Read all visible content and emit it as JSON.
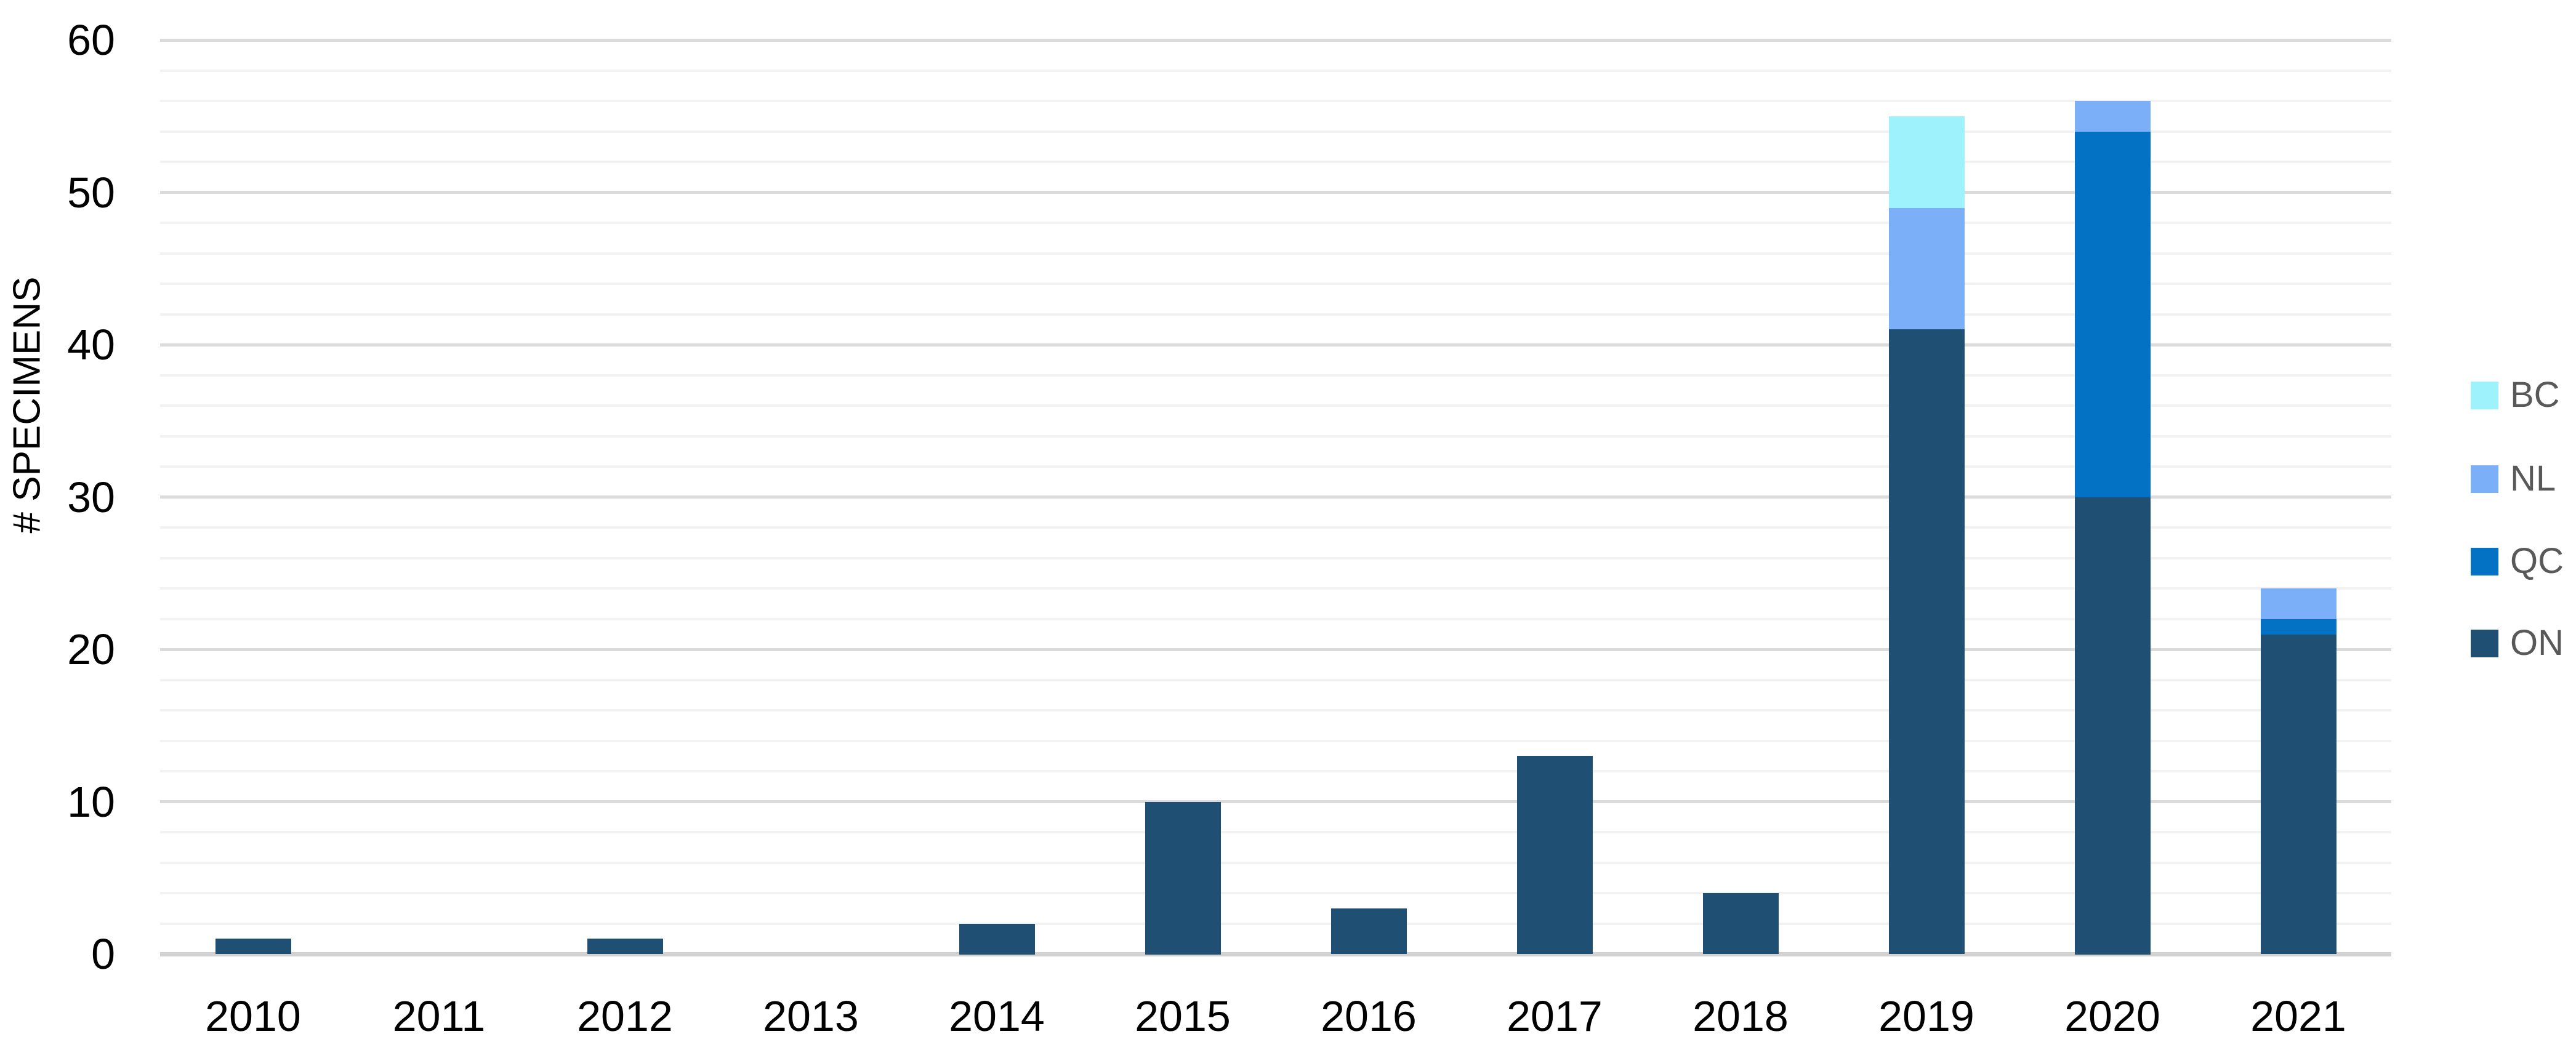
{
  "chart_data": {
    "type": "bar",
    "stacked": true,
    "title": "",
    "xlabel": "",
    "ylabel": "# SPECIMENS",
    "categories": [
      "2010",
      "2011",
      "2012",
      "2013",
      "2014",
      "2015",
      "2016",
      "2017",
      "2018",
      "2019",
      "2020",
      "2021"
    ],
    "series": [
      {
        "name": "ON",
        "color": "#1F4F73",
        "values": [
          1,
          0,
          1,
          0,
          2,
          10,
          3,
          13,
          4,
          41,
          30,
          21
        ]
      },
      {
        "name": "QC",
        "color": "#0372C4",
        "values": [
          0,
          0,
          0,
          0,
          0,
          0,
          0,
          0,
          0,
          0,
          24,
          1
        ]
      },
      {
        "name": "NL",
        "color": "#7BB0F8",
        "values": [
          0,
          0,
          0,
          0,
          0,
          0,
          0,
          0,
          0,
          8,
          2,
          2
        ]
      },
      {
        "name": "BC",
        "color": "#9EF2FC",
        "values": [
          0,
          0,
          0,
          0,
          0,
          0,
          0,
          0,
          0,
          6,
          0,
          0
        ]
      }
    ],
    "stack_totals": [
      1,
      0,
      1,
      0,
      2,
      10,
      3,
      13,
      4,
      55,
      56,
      24
    ],
    "ylim": [
      0,
      60
    ],
    "y_ticks": [
      0,
      10,
      20,
      30,
      40,
      50,
      60
    ],
    "y_minor_step": 2,
    "grid": "horizontal",
    "legend": {
      "position": "right",
      "entries": [
        {
          "label": "BC",
          "color": "#9EF2FC"
        },
        {
          "label": "NL",
          "color": "#7BB0F8"
        },
        {
          "label": "QC",
          "color": "#0372C4"
        },
        {
          "label": "ON",
          "color": "#1F4F73"
        }
      ]
    },
    "colors": {
      "background": "#FFFFFF",
      "axis_text": "#000000",
      "legend_text": "#595959",
      "grid_minor": "#F2F2F2",
      "grid_major": "#DBDBDB",
      "grid_baseline": "#D2D2D2"
    }
  }
}
